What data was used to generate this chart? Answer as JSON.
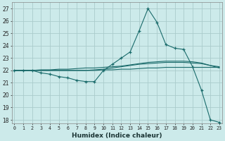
{
  "xlabel": "Humidex (Indice chaleur)",
  "bg_color": "#cceaea",
  "grid_color": "#aacccc",
  "line_color": "#1a6b6b",
  "x_ticks": [
    0,
    1,
    2,
    3,
    4,
    5,
    6,
    7,
    8,
    9,
    10,
    11,
    12,
    13,
    14,
    15,
    16,
    17,
    18,
    19,
    20,
    21,
    22,
    23
  ],
  "y_ticks": [
    18,
    19,
    20,
    21,
    22,
    23,
    24,
    25,
    26,
    27
  ],
  "xlim": [
    -0.3,
    23.3
  ],
  "ylim": [
    17.7,
    27.5
  ],
  "line1_x": [
    0,
    1,
    2,
    3,
    4,
    5,
    6,
    7,
    8,
    9,
    10,
    11,
    12,
    13,
    14,
    15,
    16,
    17,
    18,
    19,
    20,
    21,
    22,
    23
  ],
  "line1_y": [
    22.0,
    22.0,
    22.0,
    21.8,
    21.7,
    21.5,
    21.4,
    21.2,
    21.1,
    21.1,
    22.0,
    22.5,
    23.0,
    23.5,
    25.2,
    27.0,
    25.9,
    24.1,
    23.8,
    23.7,
    22.3,
    20.4,
    18.0,
    17.8
  ],
  "line2_x": [
    0,
    1,
    2,
    3,
    4,
    5,
    6,
    7,
    8,
    9,
    10,
    11,
    12,
    13,
    14,
    15,
    16,
    17,
    18,
    19,
    20,
    21,
    22,
    23
  ],
  "line2_y": [
    22.0,
    22.0,
    22.0,
    22.0,
    22.0,
    22.0,
    22.0,
    22.0,
    22.0,
    22.0,
    22.05,
    22.05,
    22.1,
    22.1,
    22.15,
    22.2,
    22.2,
    22.25,
    22.25,
    22.25,
    22.25,
    22.25,
    22.25,
    22.25
  ],
  "line3_x": [
    0,
    1,
    2,
    3,
    4,
    5,
    6,
    7,
    8,
    9,
    10,
    11,
    12,
    13,
    14,
    15,
    16,
    17,
    18,
    19,
    20,
    21,
    22,
    23
  ],
  "line3_y": [
    22.0,
    22.0,
    22.0,
    22.0,
    22.0,
    22.0,
    22.0,
    22.0,
    22.0,
    22.05,
    22.1,
    22.2,
    22.3,
    22.4,
    22.5,
    22.55,
    22.6,
    22.65,
    22.65,
    22.65,
    22.6,
    22.55,
    22.4,
    22.3
  ],
  "line4_x": [
    0,
    1,
    2,
    3,
    4,
    5,
    6,
    7,
    8,
    9,
    10,
    11,
    12,
    13,
    14,
    15,
    16,
    17,
    18,
    19,
    20,
    21,
    22,
    23
  ],
  "line4_y": [
    22.0,
    22.0,
    22.0,
    22.05,
    22.05,
    22.1,
    22.1,
    22.15,
    22.2,
    22.2,
    22.25,
    22.3,
    22.35,
    22.45,
    22.55,
    22.65,
    22.7,
    22.75,
    22.75,
    22.75,
    22.7,
    22.6,
    22.4,
    22.2
  ]
}
